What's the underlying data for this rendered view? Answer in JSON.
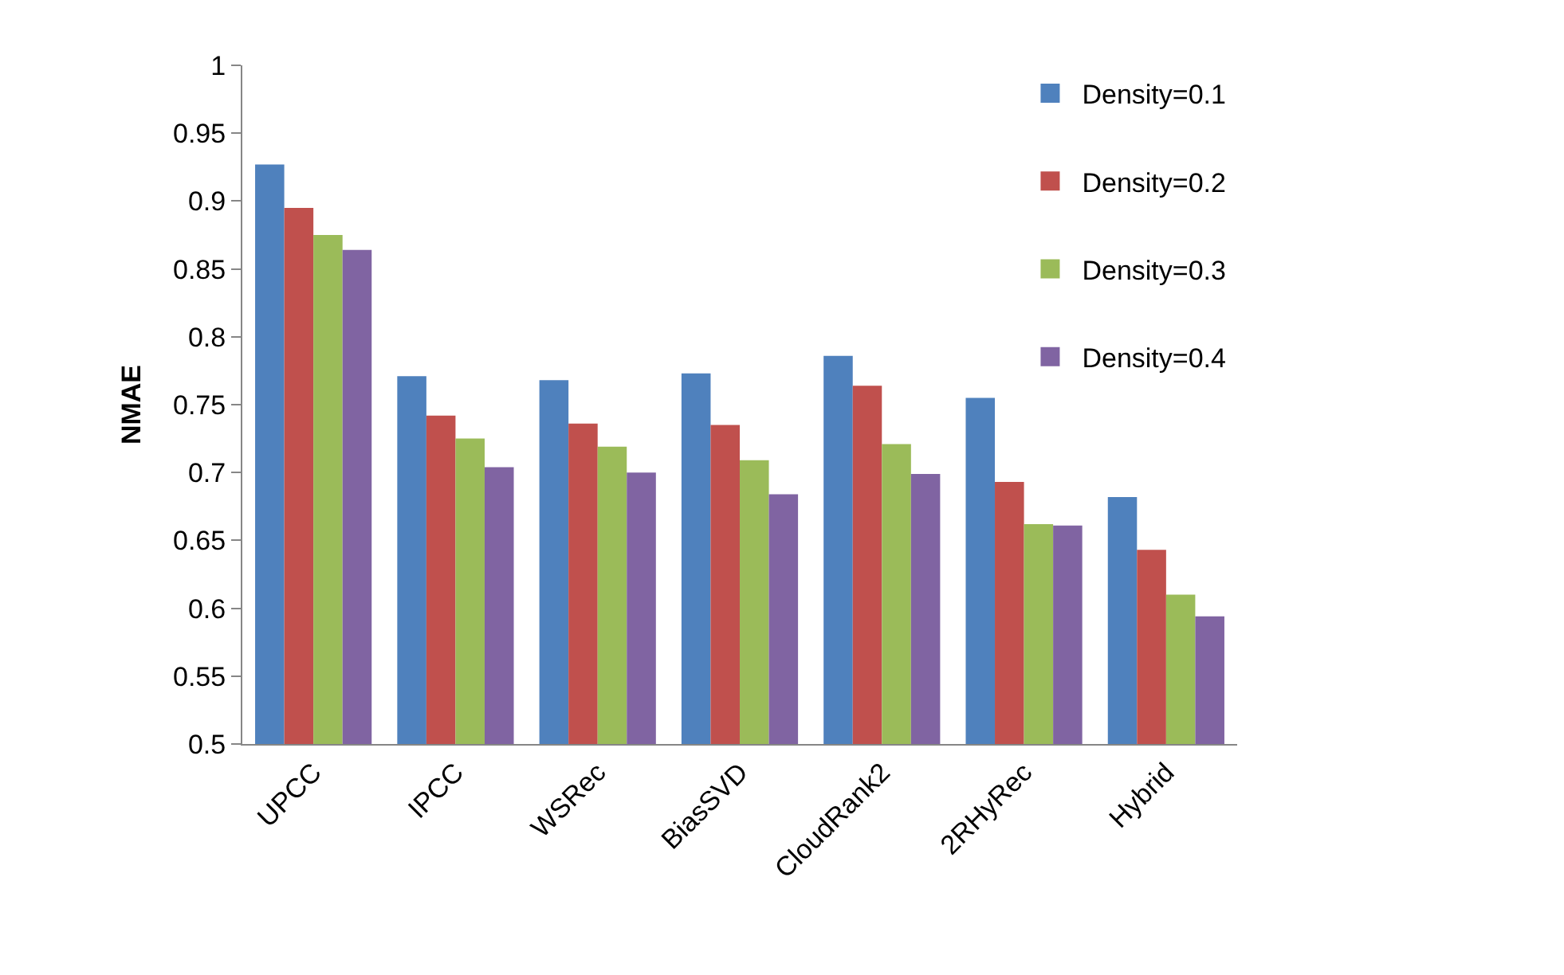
{
  "chart_data": {
    "type": "bar",
    "ylabel": "NMAE",
    "categories": [
      "UPCC",
      "IPCC",
      "WSRec",
      "BiasSVD",
      "CloudRank2",
      "2RHyRec",
      "Hybrid"
    ],
    "series": [
      {
        "name": "Density=0.1",
        "color": "#4f81bd",
        "values": [
          0.927,
          0.771,
          0.768,
          0.773,
          0.786,
          0.755,
          0.682
        ]
      },
      {
        "name": "Density=0.2",
        "color": "#c0504d",
        "values": [
          0.895,
          0.742,
          0.736,
          0.735,
          0.764,
          0.693,
          0.643
        ]
      },
      {
        "name": "Density=0.3",
        "color": "#9bbb59",
        "values": [
          0.875,
          0.725,
          0.719,
          0.709,
          0.721,
          0.662,
          0.61
        ]
      },
      {
        "name": "Density=0.4",
        "color": "#8064a2",
        "values": [
          0.864,
          0.704,
          0.7,
          0.684,
          0.699,
          0.661,
          0.594
        ]
      }
    ],
    "ylim": [
      0.5,
      1
    ],
    "yticks": [
      0.5,
      0.55,
      0.6,
      0.65,
      0.7,
      0.75,
      0.8,
      0.85,
      0.9,
      0.95,
      1
    ],
    "grid": false,
    "legend": "top right"
  }
}
